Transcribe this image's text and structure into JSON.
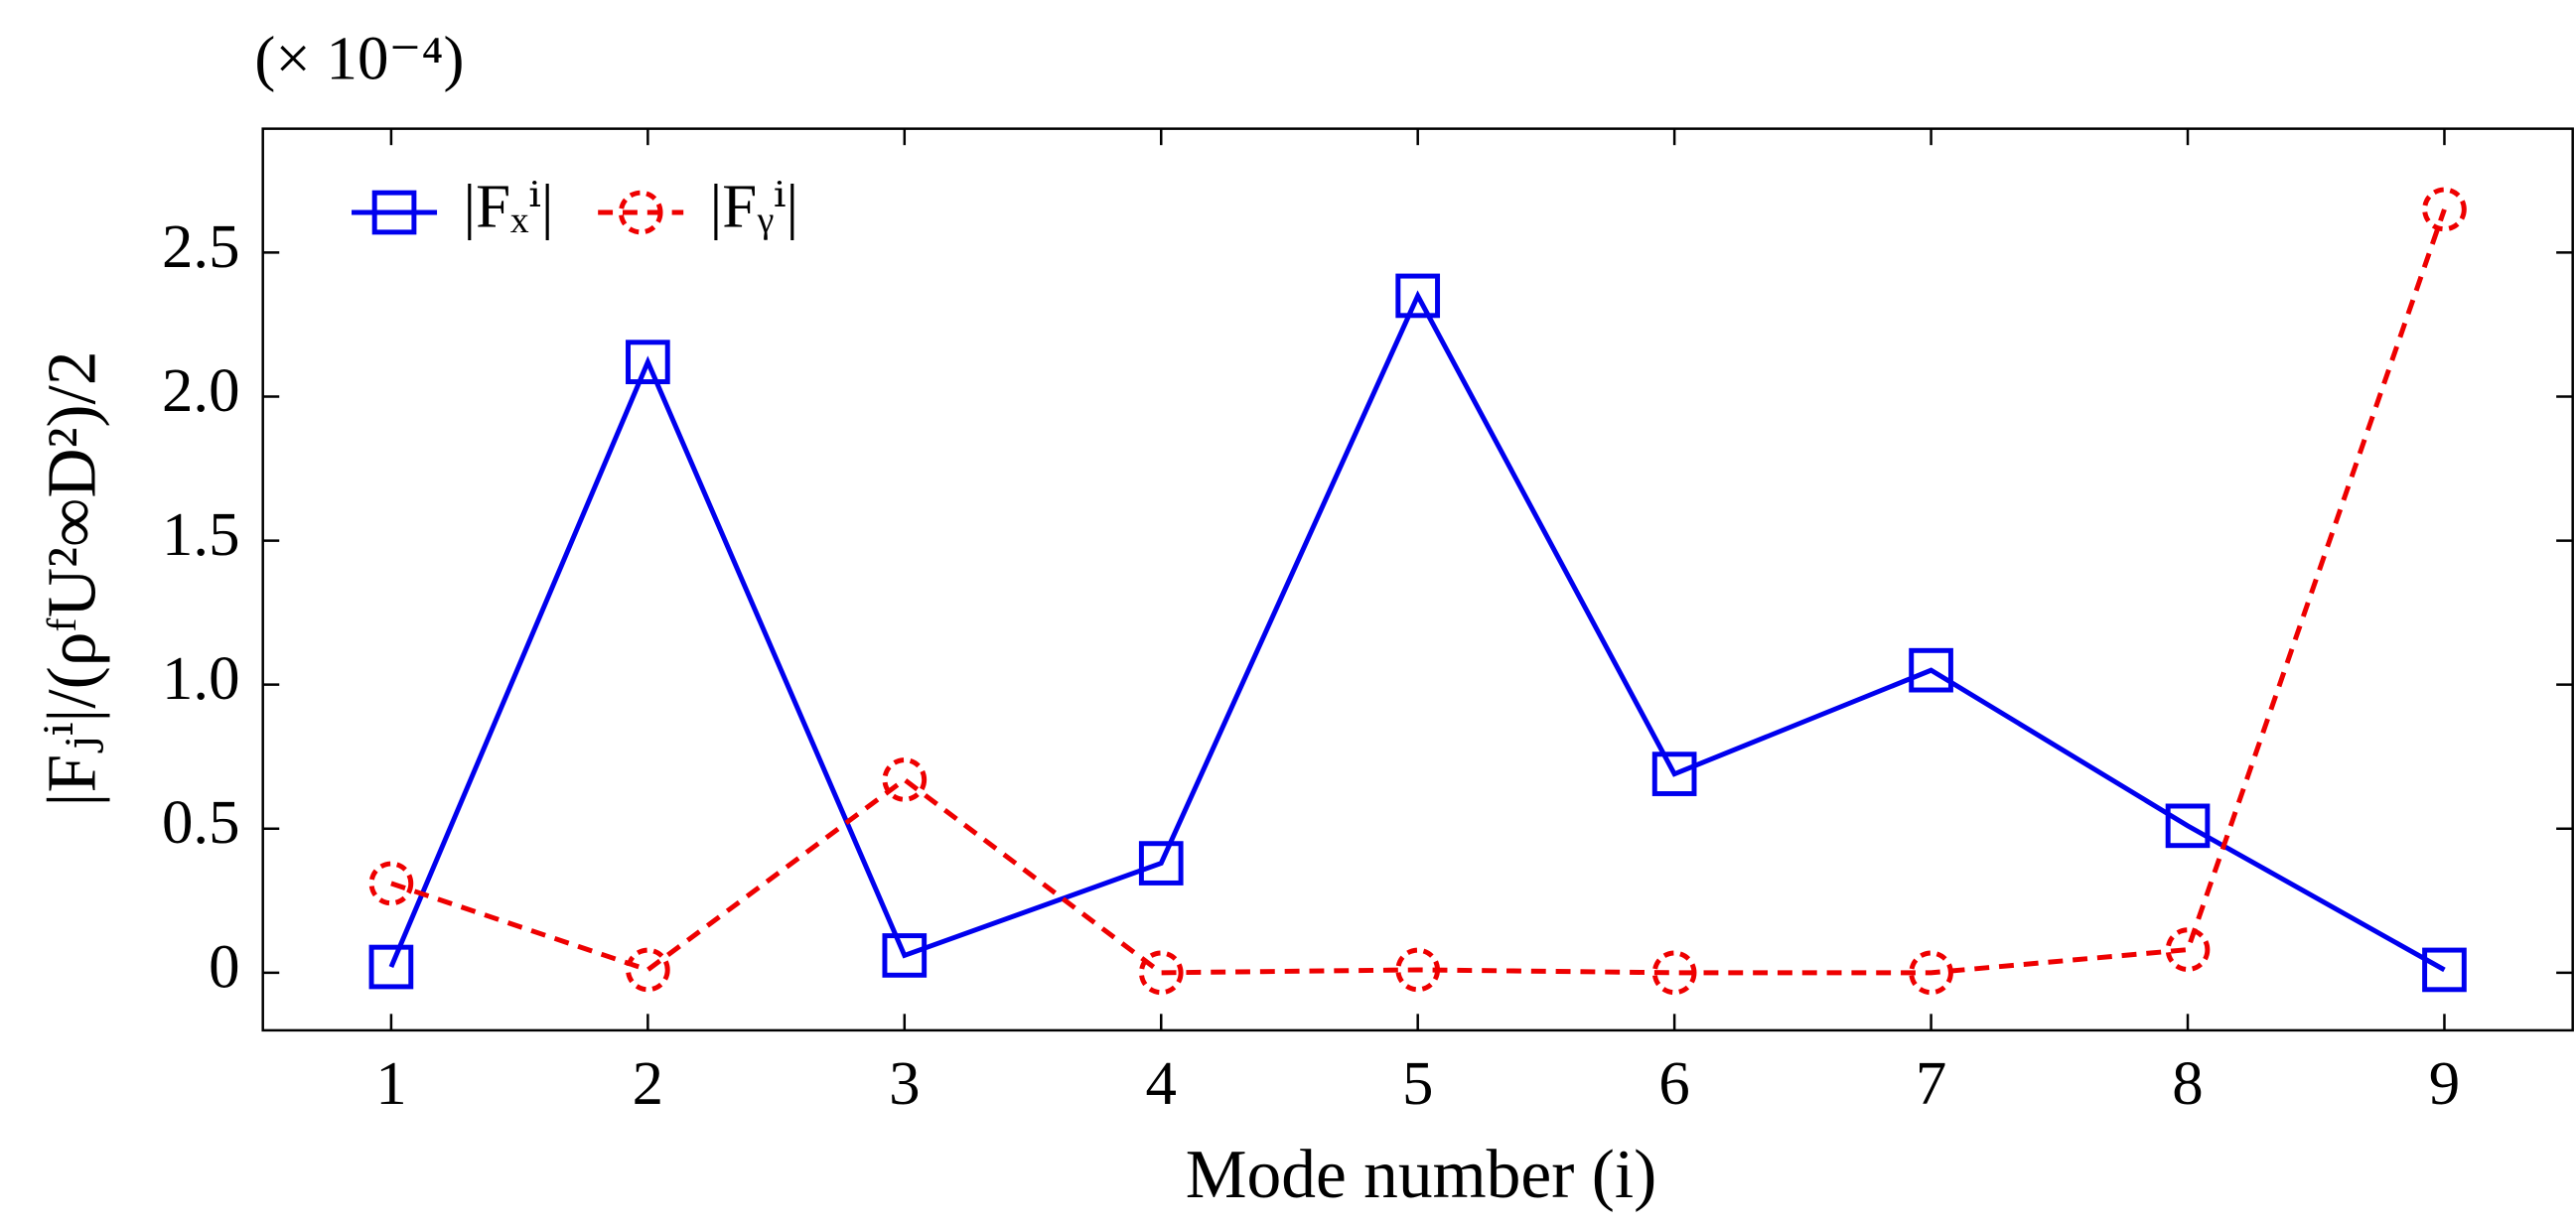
{
  "chart_data": {
    "type": "line",
    "annotation": "(× 10⁻⁴)",
    "x_label": "Mode number (i)",
    "y_label": "|Fⱼⁱ|/(ρᶠU²∞D²)/2",
    "x": [
      1,
      2,
      3,
      4,
      5,
      6,
      7,
      8,
      9
    ],
    "series": [
      {
        "name": "|Fₓⁱ|",
        "color": "#0000ee",
        "marker": "square",
        "dash": false,
        "values": [
          0.02,
          2.12,
          0.06,
          0.38,
          2.35,
          0.69,
          1.05,
          0.51,
          0.01
        ]
      },
      {
        "name": "|Fᵧⁱ|",
        "color": "#ee0000",
        "marker": "circle",
        "dash": true,
        "values": [
          0.31,
          0.01,
          0.67,
          0.0,
          0.01,
          0.0,
          0.0,
          0.08,
          2.65
        ]
      }
    ],
    "xlim": [
      0.5,
      9.5
    ],
    "xticks": [
      1,
      2,
      3,
      4,
      5,
      6,
      7,
      8,
      9
    ],
    "ylim": [
      -0.2,
      2.93
    ],
    "yticks": [
      0,
      0.5,
      {
        "value": 1,
        "label": "1.0"
      },
      1.5,
      {
        "value": 2,
        "label": "2.0"
      },
      2.5
    ],
    "legend": "upper-left"
  }
}
